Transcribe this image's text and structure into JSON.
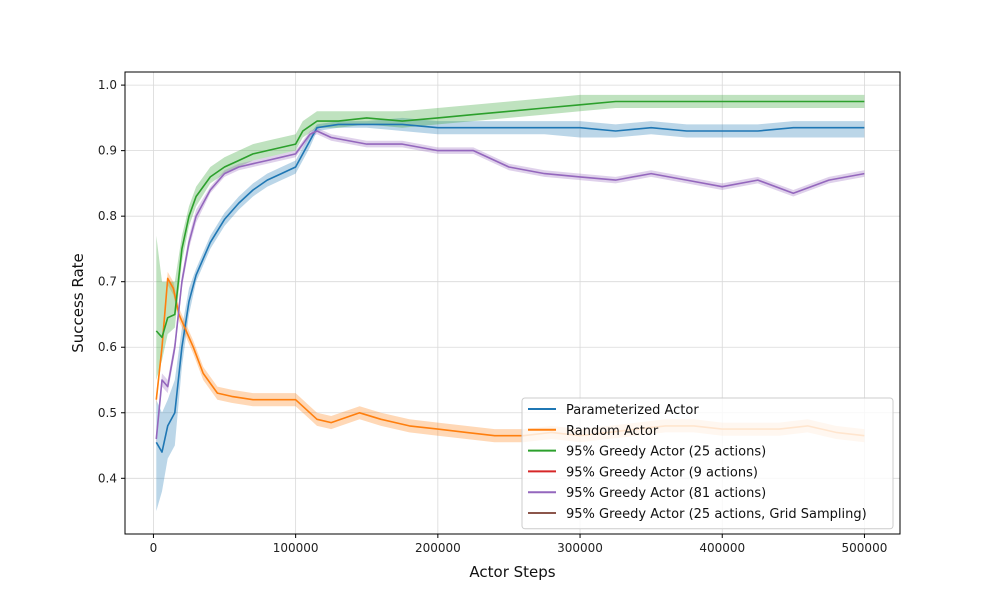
{
  "chart_data": {
    "type": "line",
    "title": "",
    "xlabel": "Actor Steps",
    "ylabel": "Success Rate",
    "xlim": [
      -20000,
      525000
    ],
    "ylim": [
      0.315,
      1.02
    ],
    "xticks": [
      0,
      100000,
      200000,
      300000,
      400000,
      500000
    ],
    "xtick_labels": [
      "0",
      "100000",
      "200000",
      "300000",
      "400000",
      "500000"
    ],
    "yticks": [
      0.4,
      0.5,
      0.6,
      0.7,
      0.8,
      0.9,
      1.0
    ],
    "ytick_labels": [
      "0.4",
      "0.5",
      "0.6",
      "0.7",
      "0.8",
      "0.9",
      "1.0"
    ],
    "grid": true,
    "legend_position": "bottom-right",
    "series": [
      {
        "name": "Parameterized Actor",
        "color": "#1f77b4",
        "x": [
          2000,
          6000,
          10000,
          15000,
          20000,
          25000,
          30000,
          40000,
          50000,
          60000,
          70000,
          80000,
          90000,
          100000,
          110000,
          115000,
          130000,
          150000,
          175000,
          200000,
          225000,
          250000,
          275000,
          300000,
          325000,
          350000,
          375000,
          400000,
          425000,
          450000,
          475000,
          500000
        ],
        "y": [
          0.455,
          0.44,
          0.48,
          0.5,
          0.6,
          0.67,
          0.71,
          0.76,
          0.795,
          0.82,
          0.84,
          0.855,
          0.865,
          0.875,
          0.915,
          0.935,
          0.94,
          0.94,
          0.94,
          0.935,
          0.935,
          0.935,
          0.935,
          0.935,
          0.93,
          0.935,
          0.93,
          0.93,
          0.93,
          0.935,
          0.935,
          0.935
        ],
        "band_low": [
          0.35,
          0.38,
          0.43,
          0.45,
          0.57,
          0.65,
          0.7,
          0.75,
          0.785,
          0.81,
          0.83,
          0.845,
          0.855,
          0.865,
          0.905,
          0.93,
          0.935,
          0.935,
          0.93,
          0.925,
          0.925,
          0.925,
          0.925,
          0.92,
          0.92,
          0.925,
          0.92,
          0.92,
          0.92,
          0.92,
          0.92,
          0.92
        ],
        "band_high": [
          0.52,
          0.5,
          0.52,
          0.55,
          0.63,
          0.69,
          0.72,
          0.77,
          0.805,
          0.83,
          0.85,
          0.865,
          0.875,
          0.885,
          0.925,
          0.94,
          0.945,
          0.945,
          0.95,
          0.945,
          0.945,
          0.945,
          0.945,
          0.945,
          0.94,
          0.945,
          0.94,
          0.94,
          0.94,
          0.945,
          0.945,
          0.945
        ]
      },
      {
        "name": "Random Actor",
        "color": "#ff7f0e",
        "x": [
          2000,
          6000,
          10000,
          14000,
          18000,
          22000,
          28000,
          35000,
          45000,
          55000,
          70000,
          85000,
          100000,
          110000,
          115000,
          125000,
          145000,
          160000,
          180000,
          200000,
          220000,
          240000,
          260000,
          280000,
          300000,
          320000,
          340000,
          360000,
          380000,
          400000,
          420000,
          440000,
          460000,
          480000,
          500000
        ],
        "y": [
          0.52,
          0.6,
          0.705,
          0.69,
          0.65,
          0.63,
          0.6,
          0.56,
          0.53,
          0.525,
          0.52,
          0.52,
          0.52,
          0.5,
          0.49,
          0.485,
          0.5,
          0.49,
          0.48,
          0.475,
          0.47,
          0.465,
          0.465,
          0.47,
          0.465,
          0.47,
          0.475,
          0.48,
          0.48,
          0.475,
          0.475,
          0.475,
          0.48,
          0.47,
          0.465
        ],
        "band_low": [
          0.51,
          0.59,
          0.695,
          0.68,
          0.64,
          0.62,
          0.59,
          0.55,
          0.52,
          0.515,
          0.51,
          0.51,
          0.51,
          0.49,
          0.48,
          0.475,
          0.49,
          0.48,
          0.47,
          0.465,
          0.46,
          0.455,
          0.455,
          0.46,
          0.455,
          0.46,
          0.465,
          0.47,
          0.47,
          0.465,
          0.465,
          0.465,
          0.47,
          0.46,
          0.455
        ],
        "band_high": [
          0.53,
          0.61,
          0.715,
          0.7,
          0.66,
          0.64,
          0.61,
          0.57,
          0.54,
          0.535,
          0.53,
          0.53,
          0.53,
          0.51,
          0.5,
          0.495,
          0.51,
          0.5,
          0.49,
          0.485,
          0.48,
          0.475,
          0.475,
          0.48,
          0.475,
          0.48,
          0.485,
          0.49,
          0.49,
          0.485,
          0.485,
          0.485,
          0.49,
          0.48,
          0.475
        ]
      },
      {
        "name": "95% Greedy Actor (25 actions)",
        "color": "#2ca02c",
        "x": [
          2000,
          6000,
          10000,
          15000,
          20000,
          25000,
          30000,
          40000,
          50000,
          60000,
          70000,
          80000,
          90000,
          100000,
          105000,
          115000,
          130000,
          150000,
          175000,
          200000,
          225000,
          250000,
          275000,
          300000,
          325000,
          350000,
          375000,
          400000,
          425000,
          450000,
          475000,
          500000
        ],
        "y": [
          0.625,
          0.615,
          0.645,
          0.65,
          0.75,
          0.8,
          0.83,
          0.86,
          0.875,
          0.885,
          0.895,
          0.9,
          0.905,
          0.91,
          0.93,
          0.945,
          0.945,
          0.95,
          0.945,
          0.95,
          0.955,
          0.96,
          0.965,
          0.97,
          0.975,
          0.975,
          0.975,
          0.975,
          0.975,
          0.975,
          0.975,
          0.975
        ],
        "band_low": [
          0.55,
          0.58,
          0.62,
          0.63,
          0.73,
          0.785,
          0.815,
          0.85,
          0.865,
          0.875,
          0.885,
          0.89,
          0.895,
          0.9,
          0.92,
          0.935,
          0.935,
          0.94,
          0.935,
          0.94,
          0.945,
          0.95,
          0.955,
          0.96,
          0.965,
          0.965,
          0.965,
          0.965,
          0.965,
          0.965,
          0.965,
          0.965
        ],
        "band_high": [
          0.77,
          0.7,
          0.7,
          0.7,
          0.77,
          0.815,
          0.845,
          0.875,
          0.89,
          0.9,
          0.91,
          0.915,
          0.92,
          0.925,
          0.945,
          0.96,
          0.96,
          0.96,
          0.96,
          0.965,
          0.97,
          0.975,
          0.98,
          0.985,
          0.985,
          0.985,
          0.985,
          0.985,
          0.985,
          0.985,
          0.985,
          0.985
        ]
      },
      {
        "name": "95% Greedy Actor (9 actions)",
        "color": "#d62728",
        "x": [],
        "y": [],
        "band_low": [],
        "band_high": []
      },
      {
        "name": "95% Greedy Actor (81 actions)",
        "color": "#9467bd",
        "x": [
          2000,
          6000,
          10000,
          15000,
          20000,
          25000,
          30000,
          40000,
          50000,
          60000,
          70000,
          80000,
          90000,
          100000,
          110000,
          115000,
          125000,
          150000,
          175000,
          200000,
          225000,
          250000,
          275000,
          300000,
          325000,
          350000,
          375000,
          400000,
          425000,
          450000,
          475000,
          500000
        ],
        "y": [
          0.46,
          0.55,
          0.54,
          0.6,
          0.7,
          0.76,
          0.8,
          0.84,
          0.865,
          0.875,
          0.88,
          0.885,
          0.89,
          0.895,
          0.925,
          0.93,
          0.92,
          0.91,
          0.91,
          0.9,
          0.9,
          0.875,
          0.865,
          0.86,
          0.855,
          0.865,
          0.855,
          0.845,
          0.855,
          0.835,
          0.855,
          0.865
        ],
        "band_low": [
          0.45,
          0.54,
          0.53,
          0.59,
          0.69,
          0.75,
          0.79,
          0.835,
          0.86,
          0.87,
          0.875,
          0.88,
          0.885,
          0.89,
          0.92,
          0.925,
          0.915,
          0.905,
          0.905,
          0.895,
          0.895,
          0.87,
          0.86,
          0.855,
          0.85,
          0.86,
          0.85,
          0.84,
          0.85,
          0.83,
          0.85,
          0.86
        ],
        "band_high": [
          0.47,
          0.56,
          0.55,
          0.61,
          0.71,
          0.77,
          0.81,
          0.845,
          0.87,
          0.88,
          0.885,
          0.89,
          0.895,
          0.9,
          0.93,
          0.935,
          0.925,
          0.915,
          0.915,
          0.905,
          0.905,
          0.88,
          0.87,
          0.865,
          0.86,
          0.87,
          0.86,
          0.85,
          0.86,
          0.84,
          0.86,
          0.87
        ]
      },
      {
        "name": "95% Greedy Actor (25 actions, Grid Sampling)",
        "color": "#8c564b",
        "x": [],
        "y": [],
        "band_low": [],
        "band_high": []
      }
    ]
  }
}
